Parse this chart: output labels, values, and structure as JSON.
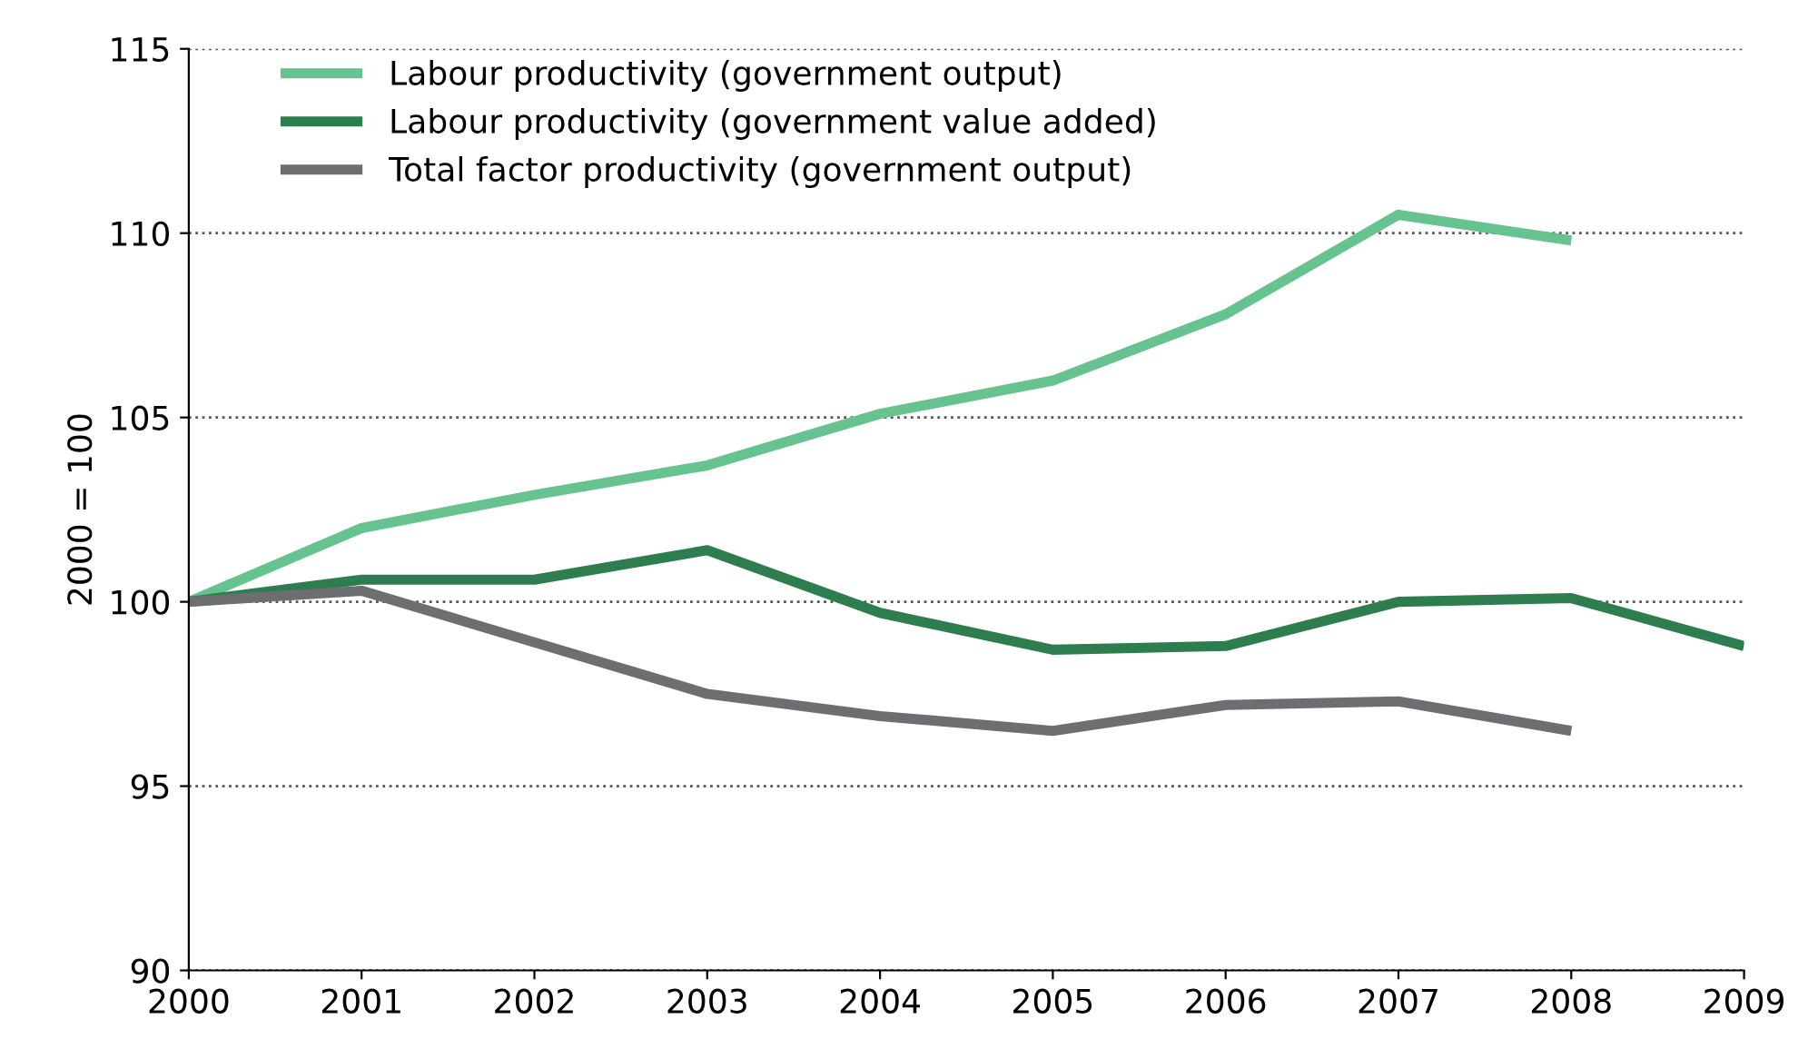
{
  "chart_data": {
    "type": "line",
    "ylabel": "2000 = 100",
    "x": [
      2000,
      2001,
      2002,
      2003,
      2004,
      2005,
      2006,
      2007,
      2008,
      2009
    ],
    "series": [
      {
        "name": "Labour productivity (government output)",
        "color": "#66c28e",
        "values": [
          100,
          102.0,
          102.9,
          103.7,
          105.1,
          106.0,
          107.8,
          110.5,
          109.8,
          null
        ]
      },
      {
        "name": "Labour productivity (government value added)",
        "color": "#2e7d4f",
        "values": [
          100,
          100.6,
          100.6,
          101.4,
          99.7,
          98.7,
          98.8,
          100.0,
          100.1,
          98.8
        ]
      },
      {
        "name": "Total factor productivity (government output)",
        "color": "#6d6e71",
        "values": [
          100,
          100.3,
          98.9,
          97.5,
          96.9,
          96.5,
          97.2,
          97.3,
          96.5,
          null
        ]
      }
    ],
    "xlim": [
      2000,
      2009
    ],
    "xticks": [
      2000,
      2001,
      2002,
      2003,
      2004,
      2005,
      2006,
      2007,
      2008,
      2009
    ],
    "ylim": [
      90,
      115
    ],
    "yticks": [
      90,
      95,
      100,
      105,
      110,
      115
    ],
    "grid": "y",
    "legend": "top left",
    "marker": "none",
    "line_style": "solid"
  }
}
